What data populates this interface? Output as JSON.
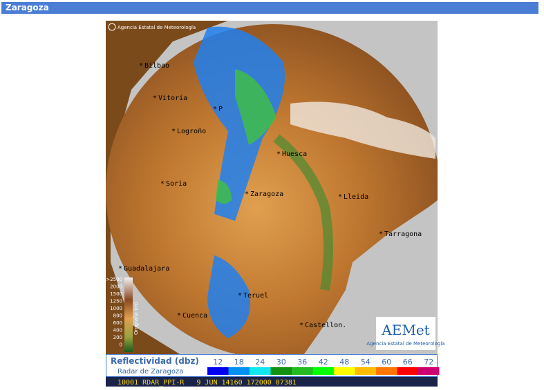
{
  "header": {
    "title": "Zaragoza"
  },
  "map": {
    "copyright": "Agencia Estatal de Meteorología",
    "cities": [
      {
        "label": "Bilbao"
      },
      {
        "label": "Vitoria"
      },
      {
        "label": "P"
      },
      {
        "label": "Logroño"
      },
      {
        "label": "Huesca"
      },
      {
        "label": "Soria"
      },
      {
        "label": "Zaragoza"
      },
      {
        "label": "Lleida"
      },
      {
        "label": "Tarragona"
      },
      {
        "label": "Guadalajara"
      },
      {
        "label": "Teruel"
      },
      {
        "label": "Cuenca"
      },
      {
        "label": "Castellon."
      }
    ],
    "elevation_legend": {
      "title": "Orografía (m)",
      "labels": [
        ">2500",
        2000,
        1500,
        1250,
        1000,
        800,
        600,
        400,
        200,
        0
      ]
    },
    "logo": {
      "name": "AEMet",
      "caption": "Agencia Estatal de Meteorología"
    }
  },
  "legend": {
    "title": "Reflectividad (dbz)",
    "subtitle": "Radar de Zaragoza",
    "steps": [
      {
        "value": 12,
        "color": "#0000f0"
      },
      {
        "value": 18,
        "color": "#0090f0"
      },
      {
        "value": 24,
        "color": "#10e8f0"
      },
      {
        "value": 30,
        "color": "#119011"
      },
      {
        "value": 36,
        "color": "#22bb22"
      },
      {
        "value": 42,
        "color": "#00ff00"
      },
      {
        "value": 48,
        "color": "#ffff00"
      },
      {
        "value": 54,
        "color": "#ffbb00"
      },
      {
        "value": 60,
        "color": "#ff7700"
      },
      {
        "value": 66,
        "color": "#ff0000"
      },
      {
        "value": 72,
        "color": "#cc0070"
      }
    ]
  },
  "footer": {
    "text": "10001 RDAR_PPI-R   9 JUN 14160 172000 07381 "
  }
}
